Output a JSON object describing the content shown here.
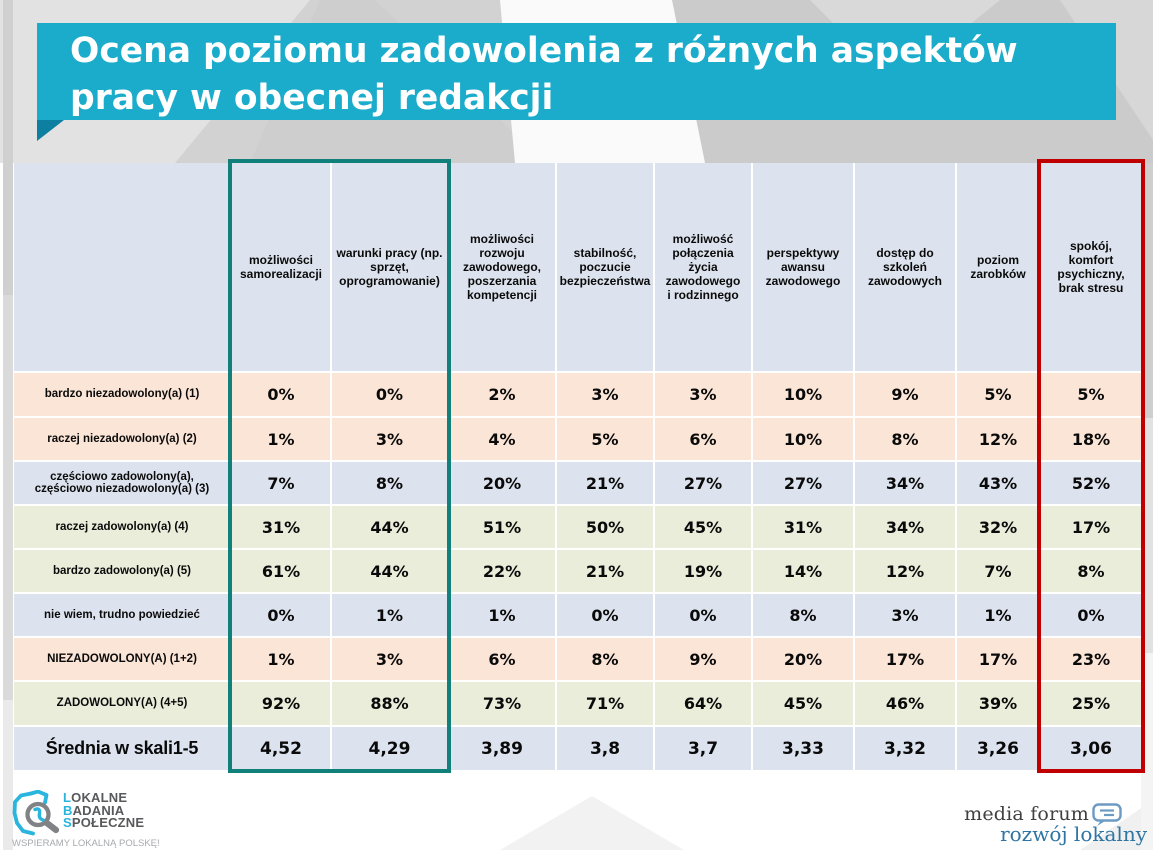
{
  "slide": {
    "title_line1": "Ocena poziomu zadowolenia z różnych aspektów",
    "title_line2": "pracy w obecnej redakcji"
  },
  "colors": {
    "banner": "#1caccb",
    "banner_fold": "#0d7fa0",
    "row_peach": "#fbe5d7",
    "row_lavender": "#dde3ee",
    "row_green": "#e9edda",
    "highlight_teal": "#12807a",
    "highlight_red": "#c00000",
    "logo_cyan": "#29b5dd"
  },
  "table": {
    "column_headers": [
      "możliwości samorealizacji",
      "warunki pracy (np. sprzęt, oprogramowanie)",
      "możliwości rozwoju zawodowego, poszerzania kompetencji",
      "stabilność, poczucie bezpieczeństwa",
      "możliwość połączenia życia zawodowego i rodzinnego",
      "perspektywy awansu zawodowego",
      "dostęp do szkoleń zawodowych",
      "poziom zarobków",
      "spokój, komfort psychiczny, brak stresu"
    ],
    "rows": [
      {
        "label": "bardzo niezadowolony(a) (1)",
        "tone": "peach",
        "values": [
          "0%",
          "0%",
          "2%",
          "3%",
          "3%",
          "10%",
          "9%",
          "5%",
          "5%"
        ]
      },
      {
        "label": "raczej niezadowolony(a) (2)",
        "tone": "peach",
        "values": [
          "1%",
          "3%",
          "4%",
          "5%",
          "6%",
          "10%",
          "8%",
          "12%",
          "18%"
        ]
      },
      {
        "label": "częściowo zadowolony(a), częściowo niezadowolony(a) (3)",
        "tone": "lavender",
        "values": [
          "7%",
          "8%",
          "20%",
          "21%",
          "27%",
          "27%",
          "34%",
          "43%",
          "52%"
        ]
      },
      {
        "label": "raczej zadowolony(a) (4)",
        "tone": "green",
        "values": [
          "31%",
          "44%",
          "51%",
          "50%",
          "45%",
          "31%",
          "34%",
          "32%",
          "17%"
        ]
      },
      {
        "label": "bardzo zadowolony(a) (5)",
        "tone": "green",
        "values": [
          "61%",
          "44%",
          "22%",
          "21%",
          "19%",
          "14%",
          "12%",
          "7%",
          "8%"
        ]
      },
      {
        "label": "nie wiem, trudno powiedzieć",
        "tone": "lavender",
        "values": [
          "0%",
          "1%",
          "1%",
          "0%",
          "0%",
          "8%",
          "3%",
          "1%",
          "0%"
        ]
      },
      {
        "label": "NIEZADOWOLONY(A) (1+2)",
        "tone": "peach",
        "values": [
          "1%",
          "3%",
          "6%",
          "8%",
          "9%",
          "20%",
          "17%",
          "17%",
          "23%"
        ]
      },
      {
        "label": "ZADOWOLONY(A) (4+5)",
        "tone": "green",
        "values": [
          "92%",
          "88%",
          "73%",
          "71%",
          "64%",
          "45%",
          "46%",
          "39%",
          "25%"
        ]
      },
      {
        "label": "Średnia w skali1-5",
        "tone": "lavender",
        "emphasis": true,
        "values": [
          "4,52",
          "4,29",
          "3,89",
          "3,8",
          "3,7",
          "3,33",
          "3,32",
          "3,26",
          "3,06"
        ]
      }
    ]
  },
  "footer": {
    "lbs_logo": {
      "lines": [
        "LOKALNE",
        "BADANIA",
        "SPOŁECZNE"
      ],
      "tagline": "WSPIERAMY LOKALNĄ POLSKĘ!"
    },
    "media_forum": {
      "line1": "media forum",
      "line2": "rozwój lokalny"
    }
  }
}
